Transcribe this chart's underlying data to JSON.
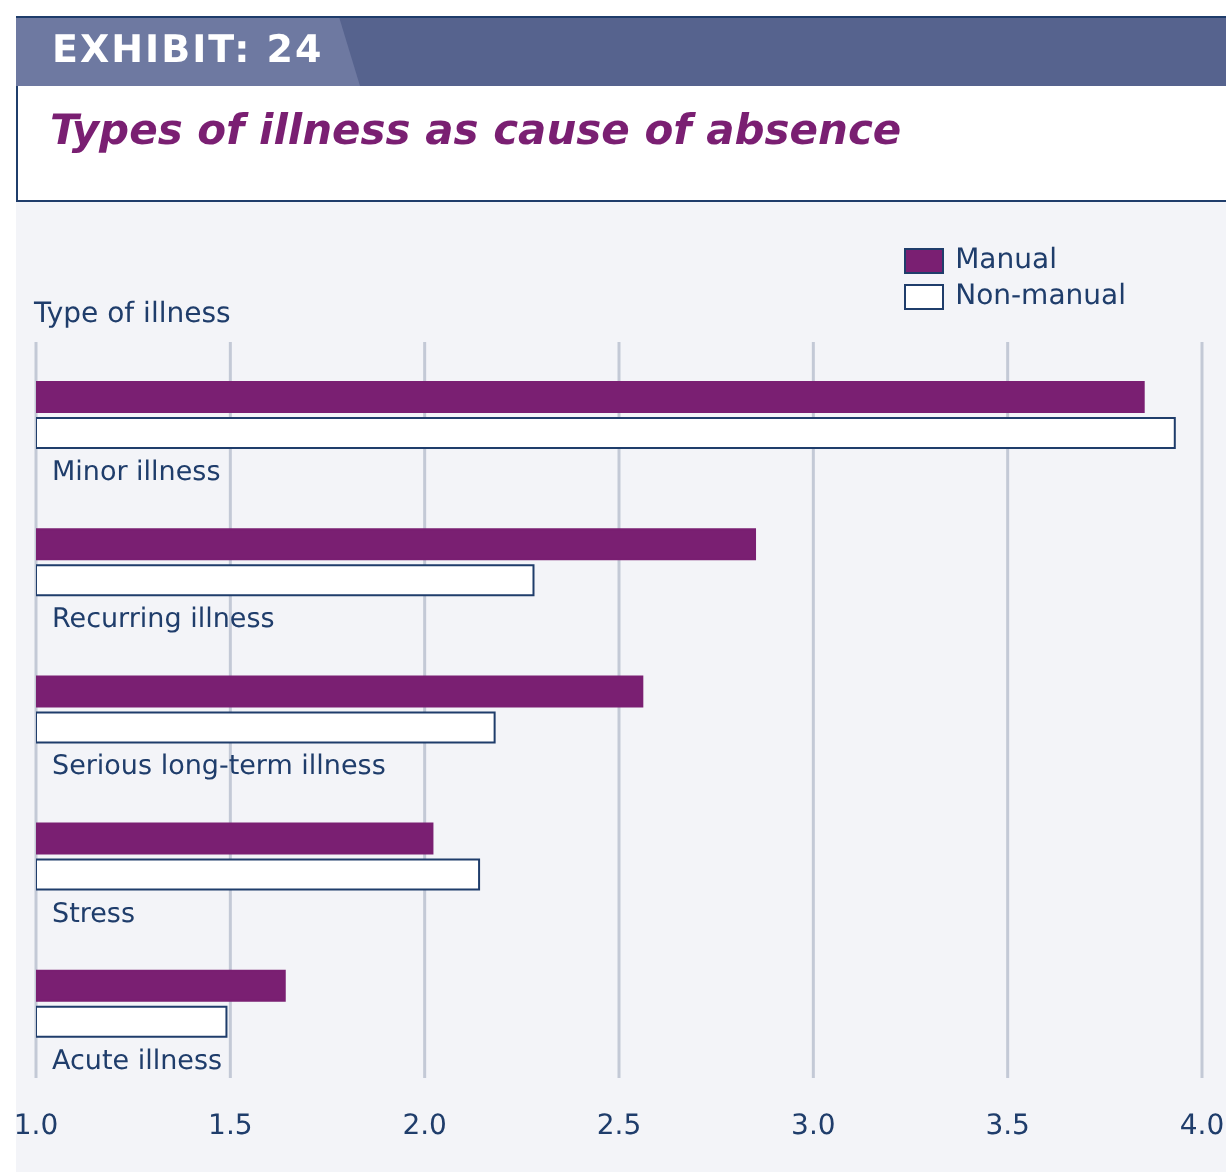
{
  "chart_data": {
    "type": "bar",
    "orientation": "horizontal",
    "title": "Types of illness as cause of absence",
    "annotations": [
      "EXHIBIT: 24"
    ],
    "ylabel": "Type of illness",
    "categories": [
      "Minor illness",
      "Recurring illness",
      "Serious long-term illness",
      "Stress",
      "Acute illness"
    ],
    "series": [
      {
        "name": "Manual",
        "color": "#7a1f72",
        "values": [
          3.85,
          2.85,
          2.56,
          2.02,
          1.64
        ]
      },
      {
        "name": "Non-manual",
        "color": "#ffffff",
        "values": [
          3.93,
          2.28,
          2.18,
          2.14,
          1.49
        ]
      }
    ],
    "xlim": [
      1.0,
      4.0
    ],
    "xticks": [
      {
        "value": 1,
        "label": "1.0"
      },
      {
        "value": 1.5,
        "label": "1.5"
      },
      {
        "value": 2,
        "label": "2.0"
      },
      {
        "value": 2.5,
        "label": "2.5"
      },
      {
        "value": 3,
        "label": "3.0"
      },
      {
        "value": 3.5,
        "label": "3.5"
      },
      {
        "value": 4,
        "label": "4.0"
      }
    ],
    "grid": "x",
    "legend": "top right"
  }
}
